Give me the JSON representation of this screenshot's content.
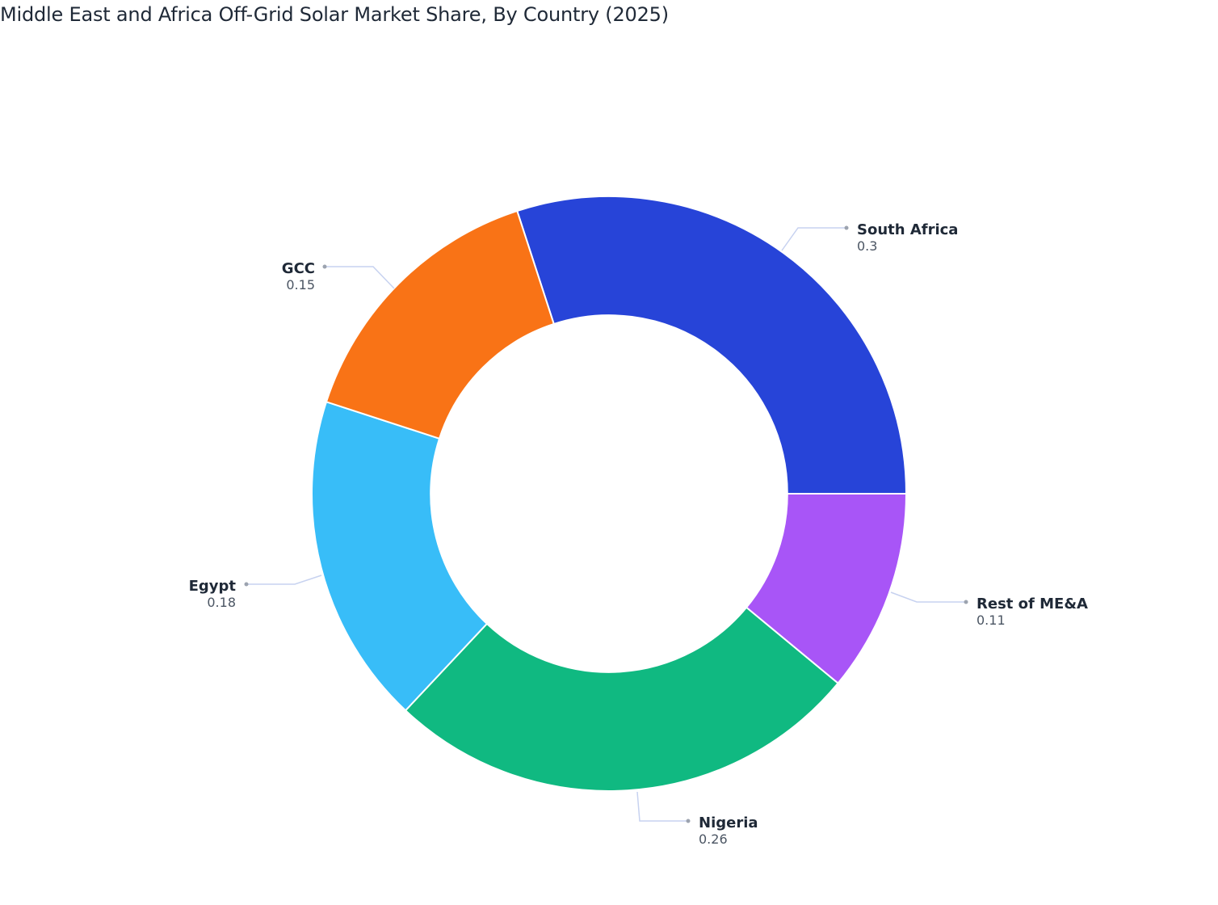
{
  "chart_data": {
    "type": "pie",
    "title": "Middle East and Africa Off-Grid Solar Market Share, By Country (2025)",
    "hole": 0.6,
    "direction": "clockwise",
    "slices": [
      {
        "label": "South Africa",
        "value": 0.3,
        "display": "0.3",
        "color": "#2744D8"
      },
      {
        "label": "Rest of ME&A",
        "value": 0.11,
        "display": "0.11",
        "color": "#A855F7"
      },
      {
        "label": "Nigeria",
        "value": 0.26,
        "display": "0.26",
        "color": "#10B981"
      },
      {
        "label": "Egypt",
        "value": 0.18,
        "display": "0.18",
        "color": "#38BDF8"
      },
      {
        "label": "GCC",
        "value": 0.15,
        "display": "0.15",
        "color": "#F97316"
      }
    ],
    "legend": "none"
  }
}
